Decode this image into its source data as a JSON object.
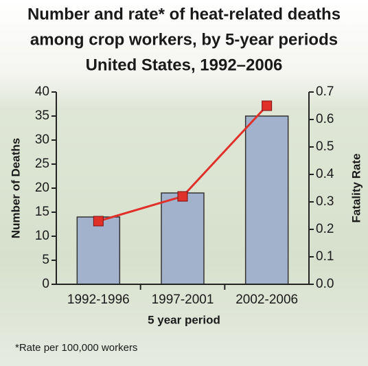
{
  "chart_data": {
    "type": "bar",
    "title": [
      "Number and rate* of heat-related deaths",
      "among crop workers, by 5-year periods",
      "United States, 1992–2006"
    ],
    "categories": [
      "1992-1996",
      "1997-2001",
      "2002-2006"
    ],
    "series": [
      {
        "type": "bar",
        "color": "#a3b2cc",
        "values": [
          14,
          19,
          35
        ]
      },
      {
        "type": "line",
        "axis": "y2",
        "color": "#e0302a",
        "values": [
          0.23,
          0.32,
          0.65
        ]
      }
    ],
    "xlabel": "5 year period",
    "ylabel": "Number of Deaths",
    "y2label": "Fatality Rate",
    "ylim": [
      0,
      40
    ],
    "yticks": [
      0,
      5,
      10,
      15,
      20,
      25,
      30,
      35,
      40
    ],
    "y2lim": [
      0,
      0.7
    ],
    "y2ticks": [
      {
        "value": 0,
        "label": "0.0"
      },
      0.1,
      0.2,
      0.3,
      0.4,
      0.5,
      0.6,
      0.7
    ],
    "footnote": "*Rate per 100,000 workers"
  }
}
